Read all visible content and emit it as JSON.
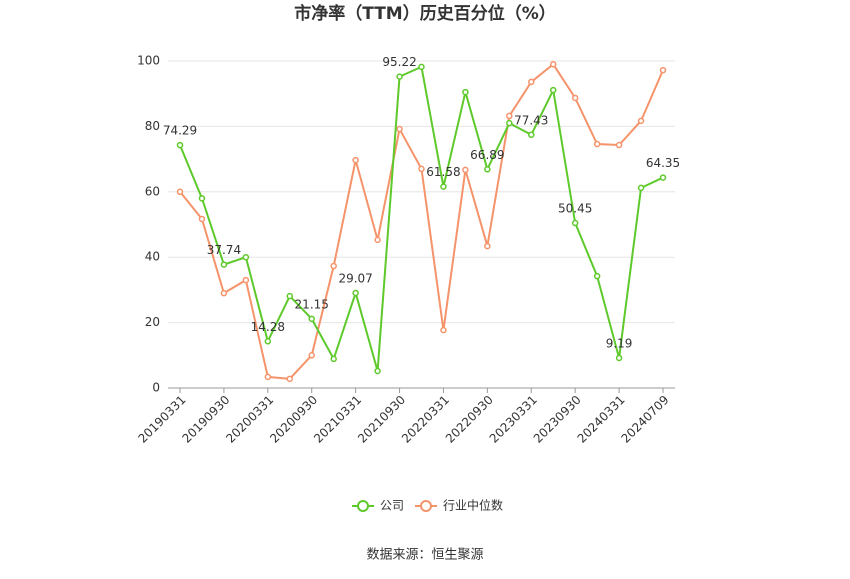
{
  "chart_data": {
    "type": "line",
    "title": "市净率（TTM）历史百分位（%）",
    "categories": [
      "20190331",
      null,
      "20190930",
      null,
      "20200331",
      null,
      "20200930",
      null,
      "20210331",
      null,
      "20210930",
      null,
      "20220331",
      null,
      "20220930",
      null,
      "20230331",
      null,
      "20230930",
      null,
      "20240331",
      null,
      "20240709"
    ],
    "series": [
      {
        "name": "公司",
        "color": "#5ec92b",
        "values": [
          74.29,
          58,
          37.74,
          40,
          14.28,
          28.1,
          21.15,
          8.9,
          29.07,
          5.2,
          95.22,
          98.2,
          61.58,
          90.5,
          66.89,
          81,
          77.43,
          91.1,
          50.45,
          34.2,
          9.19,
          61.2,
          64.35
        ],
        "value_labels": [
          "74.29",
          null,
          "37.74",
          null,
          "14.28",
          null,
          "21.15",
          null,
          "29.07",
          null,
          "95.22",
          null,
          "61.58",
          null,
          "66.89",
          null,
          "77.43",
          null,
          "50.45",
          null,
          "9.19",
          null,
          "64.35"
        ]
      },
      {
        "name": "行业中位数",
        "color": "#f5936b",
        "values": [
          60,
          51.7,
          29,
          33,
          3.4,
          2.8,
          10,
          37.3,
          69.7,
          45.3,
          79.2,
          67,
          17.7,
          66.7,
          43.4,
          83.2,
          93.6,
          99,
          88.7,
          74.6,
          74.3,
          81.7,
          97.2
        ]
      }
    ],
    "ylim": [
      0,
      100
    ],
    "yticks": [
      0,
      20,
      40,
      60,
      80,
      100
    ],
    "grid": true,
    "legend": "bottom",
    "source": "数据来源：恒生聚源"
  }
}
